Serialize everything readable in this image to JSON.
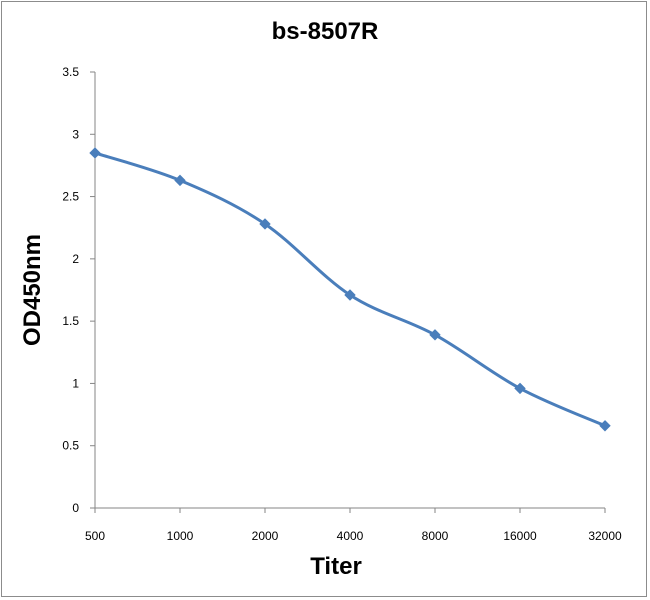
{
  "chart_data": {
    "type": "line",
    "title": "bs-8507R",
    "xlabel": "Titer",
    "ylabel": "OD450nm",
    "categories": [
      "500",
      "1000",
      "2000",
      "4000",
      "8000",
      "16000",
      "32000"
    ],
    "series": [
      {
        "values": [
          2.85,
          2.63,
          2.28,
          1.71,
          1.39,
          0.96,
          0.66
        ]
      }
    ],
    "ylim": [
      0,
      3.5
    ],
    "yticks": [
      "0",
      "0.5",
      "1",
      "1.5",
      "2",
      "2.5",
      "3",
      "3.5"
    ],
    "grid": false,
    "legend": "none",
    "marker": "diamond",
    "smooth": true,
    "line_color": "#4a7ebb"
  }
}
